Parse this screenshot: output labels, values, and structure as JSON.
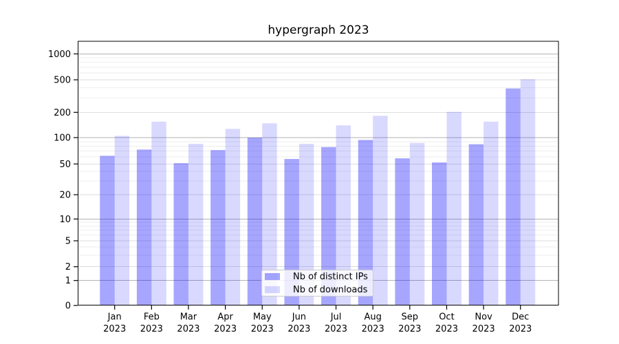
{
  "chart_data": {
    "type": "bar",
    "title": "hypergraph 2023",
    "categories": [
      "Jan 2023",
      "Feb 2023",
      "Mar 2023",
      "Apr 2023",
      "May 2023",
      "Jun 2023",
      "Jul 2023",
      "Aug 2023",
      "Sep 2023",
      "Oct 2023",
      "Nov 2023",
      "Dec 2023"
    ],
    "x_tick_months": [
      "Jan",
      "Feb",
      "Mar",
      "Apr",
      "May",
      "Jun",
      "Jul",
      "Aug",
      "Sep",
      "Oct",
      "Nov",
      "Dec"
    ],
    "x_tick_year": "2023",
    "series": [
      {
        "name": "Nb of distinct IPs",
        "color": "rgba(0,0,255,0.35)",
        "color_on_white": "#a6a6ff",
        "values": [
          62,
          73,
          51,
          72,
          100,
          57,
          78,
          94,
          58,
          52,
          84,
          392
        ]
      },
      {
        "name": "Nb of downloads",
        "color": "rgba(0,0,255,0.15)",
        "color_on_white": "#d9d9ff",
        "values": [
          105,
          155,
          85,
          127,
          148,
          85,
          140,
          182,
          87,
          203,
          155,
          508
        ]
      }
    ],
    "y_axis": {
      "scale": "symlog",
      "ticks": [
        0,
        1,
        2,
        5,
        10,
        20,
        50,
        100,
        200,
        500,
        1000
      ],
      "ylim": [
        0,
        1400
      ]
    },
    "grid": "both",
    "grid_colors": {
      "power10": "#b3b3b3",
      "major": "#dddddd",
      "minor": "#eeeeee"
    },
    "frame_color": "#000000",
    "background": "#ffffff",
    "legend_position": "lower center"
  }
}
